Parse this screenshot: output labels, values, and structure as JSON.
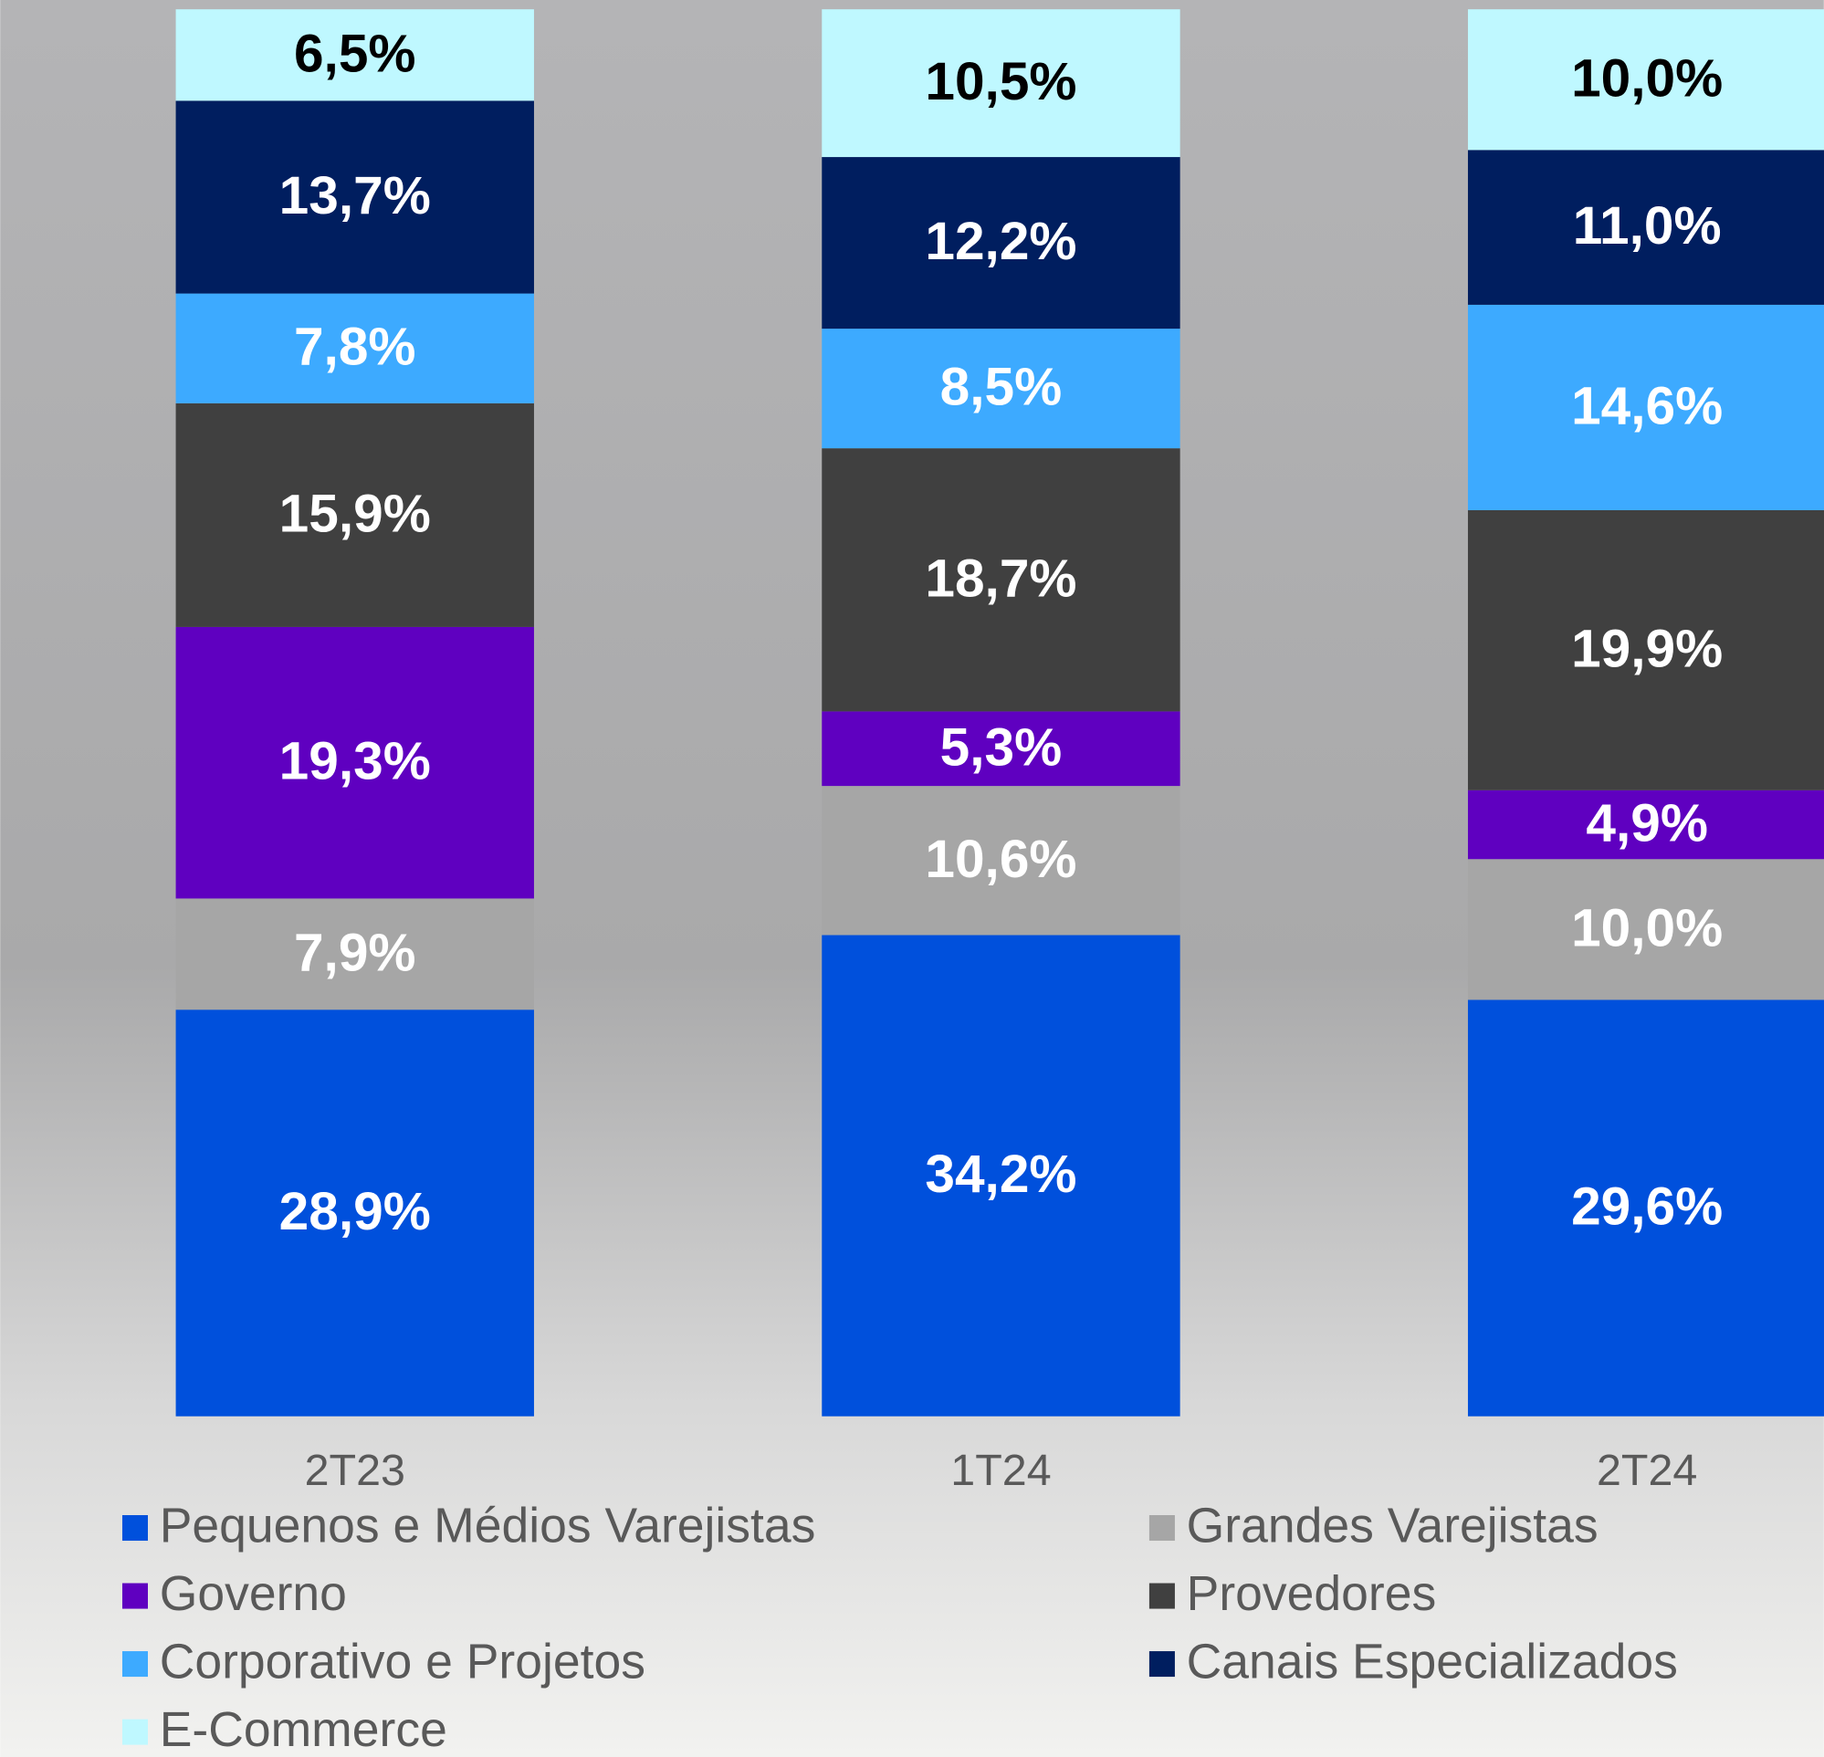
{
  "chart_data": {
    "type": "stacked_bar",
    "categories": [
      "2T23",
      "1T24",
      "2T24"
    ],
    "series": [
      {
        "name": "Pequenos e Médios Varejistas",
        "color": "#0050dc",
        "values": [
          28.9,
          34.2,
          29.6
        ],
        "value_labels": [
          "28,9%",
          "34,2%",
          "29,6%"
        ]
      },
      {
        "name": "Grandes Varejistas",
        "color": "#a6a6a6",
        "values": [
          7.9,
          10.6,
          10.0
        ],
        "value_labels": [
          "7,9%",
          "10,6%",
          "10,0%"
        ]
      },
      {
        "name": "Governo",
        "color": "#5f00c0",
        "values": [
          19.3,
          5.3,
          4.9
        ],
        "value_labels": [
          "19,3%",
          "5,3%",
          "4,9%"
        ]
      },
      {
        "name": "Provedores",
        "color": "#404040",
        "values": [
          15.9,
          18.7,
          19.9
        ],
        "value_labels": [
          "15,9%",
          "18,7%",
          "19,9%"
        ]
      },
      {
        "name": "Corporativo e Projetos",
        "color": "#3daaff",
        "values": [
          7.8,
          8.5,
          14.6
        ],
        "value_labels": [
          "7,8%",
          "8,5%",
          "14,6%"
        ]
      },
      {
        "name": "Canais Especializados",
        "color": "#001e5f",
        "values": [
          13.7,
          12.2,
          11.0
        ],
        "value_labels": [
          "13,7%",
          "12,2%",
          "11,0%"
        ]
      },
      {
        "name": "E-Commerce",
        "color": "#bff8ff",
        "values": [
          6.5,
          10.5,
          10.0
        ],
        "value_labels": [
          "6,5%",
          "10,5%",
          "10,0%"
        ]
      }
    ]
  }
}
